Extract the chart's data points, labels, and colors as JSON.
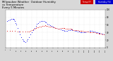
{
  "title_line1": "Milwaukee Weather  Outdoor Humidity",
  "title_line2": "vs Temperature",
  "title_line3": "Every 5 Minutes",
  "title_fontsize": 2.8,
  "bg_color": "#d8d8d8",
  "plot_bg_color": "#ffffff",
  "grid_color": "#aaaaaa",
  "blue_color": "#0000ee",
  "red_color": "#dd0000",
  "legend_red_color": "#cc0000",
  "legend_blue_color": "#0000cc",
  "legend_red_label": "Temp (F)",
  "legend_blue_label": "Humidity (%)",
  "marker_size": 1.5,
  "blue_x": [
    2,
    4,
    6,
    7,
    9,
    11,
    12,
    13,
    14,
    15,
    16,
    18,
    20,
    22,
    24,
    26,
    27,
    28,
    30,
    32,
    34,
    36,
    38,
    40,
    42,
    44,
    46,
    48,
    50,
    52,
    54,
    56,
    58,
    60,
    62,
    64,
    66,
    68,
    70,
    72,
    74,
    76,
    78,
    80,
    82,
    84,
    86,
    88,
    90,
    92,
    94,
    96,
    98,
    100,
    102,
    104,
    106,
    108,
    110,
    112,
    114,
    116,
    118,
    120,
    122,
    124,
    126,
    128,
    130,
    132,
    134,
    136,
    138,
    140,
    142,
    144,
    146,
    148,
    150
  ],
  "blue_y": [
    70,
    72,
    73,
    74,
    75,
    76,
    75,
    73,
    70,
    65,
    60,
    52,
    42,
    35,
    28,
    22,
    18,
    16,
    15,
    18,
    22,
    28,
    35,
    40,
    46,
    52,
    58,
    62,
    65,
    68,
    70,
    71,
    70,
    68,
    66,
    63,
    61,
    59,
    57,
    55,
    53,
    52,
    51,
    50,
    49,
    48,
    47,
    46,
    45,
    45,
    45,
    46,
    47,
    48,
    47,
    46,
    45,
    44,
    43,
    42,
    41,
    40,
    40,
    40,
    41,
    42,
    43,
    44,
    45,
    44,
    43,
    42,
    41,
    40,
    39,
    38,
    37,
    36,
    35
  ],
  "red_x": [
    2,
    6,
    10,
    14,
    18,
    22,
    26,
    30,
    34,
    36,
    38,
    40,
    42,
    44,
    46,
    48,
    50,
    52,
    54,
    56,
    58,
    60,
    62,
    64,
    66,
    68,
    70,
    72,
    74,
    76,
    78,
    80,
    82,
    84,
    86,
    88,
    90,
    92,
    94,
    96,
    98,
    100,
    102,
    104,
    106,
    108,
    110,
    112,
    114,
    116,
    118,
    120,
    122,
    124,
    126,
    128,
    130,
    132,
    134,
    136,
    138,
    140,
    142,
    144,
    146,
    148,
    150
  ],
  "red_y": [
    45,
    45,
    44,
    44,
    43,
    42,
    42,
    42,
    42,
    43,
    44,
    46,
    48,
    50,
    52,
    53,
    54,
    55,
    56,
    57,
    58,
    59,
    58,
    57,
    56,
    56,
    55,
    54,
    53,
    52,
    51,
    50,
    50,
    51,
    52,
    52,
    51,
    50,
    50,
    50,
    50,
    49,
    48,
    47,
    47,
    47,
    46,
    45,
    45,
    45,
    44,
    43,
    43,
    43,
    42,
    41,
    40,
    40,
    40,
    40,
    39,
    38,
    37,
    36,
    36,
    35,
    35
  ],
  "xlim": [
    0,
    152
  ],
  "ylim": [
    0,
    100
  ],
  "yticks": [
    0,
    20,
    40,
    60,
    80,
    100
  ],
  "ytick_labels": [
    "0",
    "20",
    "40",
    "60",
    "80",
    "100"
  ],
  "num_xticks": 20
}
